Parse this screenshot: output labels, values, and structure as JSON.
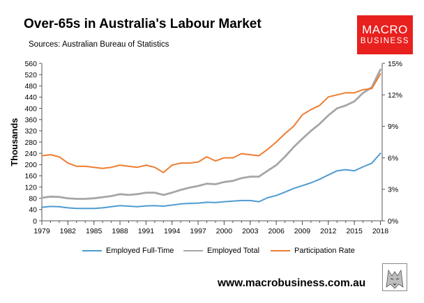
{
  "header": {
    "title": "Over-65s in Australia's Labour Market",
    "subtitle": "Sources: Australian Bureau of Statistics"
  },
  "logo": {
    "line1": "MACRO",
    "line2": "BUSINESS",
    "color": "#e8201e"
  },
  "footer": {
    "url": "www.macrobusiness.com.au"
  },
  "chart_data": {
    "type": "line",
    "ylabel": "Thousands",
    "xlim": [
      1979,
      2018.2
    ],
    "ylim": [
      0,
      560
    ],
    "y2lim": [
      0,
      15
    ],
    "grid": false,
    "legend": "bottom",
    "x_ticks": [
      "1979",
      "1982",
      "1985",
      "1988",
      "1991",
      "1994",
      "1997",
      "2000",
      "2003",
      "2006",
      "2009",
      "2012",
      "2015",
      "2018"
    ],
    "y_ticks": [
      "0",
      "40",
      "80",
      "120",
      "160",
      "200",
      "240",
      "280",
      "320",
      "360",
      "400",
      "440",
      "480",
      "520",
      "560"
    ],
    "y2_ticks": [
      "0%",
      "3%",
      "6%",
      "9%",
      "12%",
      "15%"
    ],
    "series": [
      {
        "name": "Employed Full-Time",
        "axis": "left",
        "color": "#4e9bd1",
        "x": [
          1979,
          1980,
          1981,
          1982,
          1983,
          1984,
          1985,
          1986,
          1987,
          1988,
          1989,
          1990,
          1991,
          1992,
          1993,
          1994,
          1995,
          1996,
          1997,
          1998,
          1999,
          2000,
          2001,
          2002,
          2003,
          2004,
          2005,
          2006,
          2007,
          2008,
          2009,
          2010,
          2011,
          2012,
          2013,
          2014,
          2015,
          2016,
          2017,
          2018
        ],
        "values": [
          48,
          51,
          50,
          46,
          44,
          44,
          44,
          46,
          50,
          54,
          52,
          50,
          53,
          54,
          52,
          56,
          60,
          62,
          63,
          66,
          65,
          68,
          70,
          72,
          72,
          68,
          82,
          90,
          102,
          115,
          125,
          135,
          148,
          163,
          178,
          182,
          178,
          192,
          205,
          240
        ]
      },
      {
        "name": "Employed Total",
        "axis": "left",
        "color": "#a6a6a6",
        "x": [
          1979,
          1980,
          1981,
          1982,
          1983,
          1984,
          1985,
          1986,
          1987,
          1988,
          1989,
          1990,
          1991,
          1992,
          1993,
          1994,
          1995,
          1996,
          1997,
          1998,
          1999,
          2000,
          2001,
          2002,
          2003,
          2004,
          2005,
          2006,
          2007,
          2008,
          2009,
          2010,
          2011,
          2012,
          2013,
          2014,
          2015,
          2016,
          2017,
          2018
        ],
        "values": [
          82,
          86,
          85,
          80,
          78,
          78,
          80,
          84,
          88,
          95,
          92,
          95,
          100,
          100,
          92,
          100,
          110,
          118,
          124,
          132,
          130,
          138,
          142,
          152,
          157,
          157,
          178,
          198,
          228,
          262,
          292,
          320,
          345,
          375,
          400,
          410,
          425,
          455,
          475,
          538
        ]
      },
      {
        "name": "Participation Rate",
        "axis": "right",
        "color": "#ed7d31",
        "x": [
          1979,
          1980,
          1981,
          1982,
          1983,
          1984,
          1985,
          1986,
          1987,
          1988,
          1989,
          1990,
          1991,
          1992,
          1993,
          1994,
          1995,
          1996,
          1997,
          1998,
          1999,
          2000,
          2001,
          2002,
          2003,
          2004,
          2005,
          2006,
          2007,
          2008,
          2009,
          2010,
          2011,
          2012,
          2013,
          2014,
          2015,
          2016,
          2017,
          2018
        ],
        "values": [
          6.2,
          6.3,
          6.1,
          5.5,
          5.2,
          5.2,
          5.1,
          5.0,
          5.1,
          5.3,
          5.2,
          5.1,
          5.3,
          5.1,
          4.6,
          5.3,
          5.5,
          5.5,
          5.6,
          6.1,
          5.7,
          6.0,
          6.0,
          6.4,
          6.3,
          6.2,
          6.8,
          7.5,
          8.3,
          9.0,
          10.1,
          10.6,
          11.0,
          11.8,
          12.0,
          12.2,
          12.2,
          12.5,
          12.6,
          14.0
        ]
      }
    ]
  }
}
